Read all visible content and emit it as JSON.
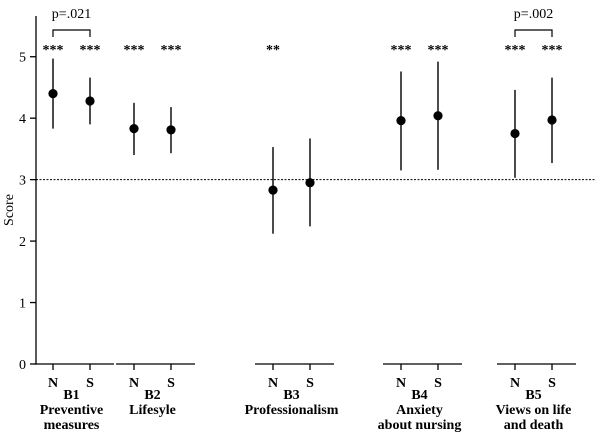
{
  "chart_data": {
    "type": "scatter",
    "ylabel": "Score",
    "ylim": [
      0,
      5.5
    ],
    "yticks": [
      0,
      1,
      2,
      3,
      4,
      5
    ],
    "reference_line": 3,
    "groups": [
      {
        "id": "B1",
        "label_lines": [
          "B1",
          "Preventive",
          "measures"
        ]
      },
      {
        "id": "B2",
        "label_lines": [
          "B2",
          "Lifesyle"
        ]
      },
      {
        "id": "B3",
        "label_lines": [
          "B3",
          "Professionalism"
        ]
      },
      {
        "id": "B4",
        "label_lines": [
          "B4",
          "Anxiety",
          "about nursing"
        ]
      },
      {
        "id": "B5",
        "label_lines": [
          "B5",
          "Views on life",
          "and death"
        ]
      }
    ],
    "points": [
      {
        "group": "B1",
        "category": "N",
        "mean": 4.4,
        "low": 3.83,
        "high": 4.97,
        "sig": "***"
      },
      {
        "group": "B1",
        "category": "S",
        "mean": 4.28,
        "low": 3.9,
        "high": 4.66,
        "sig": "***"
      },
      {
        "group": "B2",
        "category": "N",
        "mean": 3.83,
        "low": 3.4,
        "high": 4.25,
        "sig": "***"
      },
      {
        "group": "B2",
        "category": "S",
        "mean": 3.81,
        "low": 3.43,
        "high": 4.18,
        "sig": "***"
      },
      {
        "group": "B3",
        "category": "N",
        "mean": 2.83,
        "low": 2.12,
        "high": 3.53,
        "sig": "**"
      },
      {
        "group": "B3",
        "category": "S",
        "mean": 2.95,
        "low": 2.24,
        "high": 3.67,
        "sig": ""
      },
      {
        "group": "B4",
        "category": "N",
        "mean": 3.96,
        "low": 3.15,
        "high": 4.76,
        "sig": "***"
      },
      {
        "group": "B4",
        "category": "S",
        "mean": 4.04,
        "low": 3.16,
        "high": 4.92,
        "sig": "***"
      },
      {
        "group": "B5",
        "category": "N",
        "mean": 3.75,
        "low": 3.03,
        "high": 4.46,
        "sig": "***"
      },
      {
        "group": "B5",
        "category": "S",
        "mean": 3.97,
        "low": 3.27,
        "high": 4.66,
        "sig": "***"
      }
    ],
    "comparisons": [
      {
        "group": "B1",
        "label": "p=.021"
      },
      {
        "group": "B5",
        "label": "p=.002"
      }
    ]
  }
}
